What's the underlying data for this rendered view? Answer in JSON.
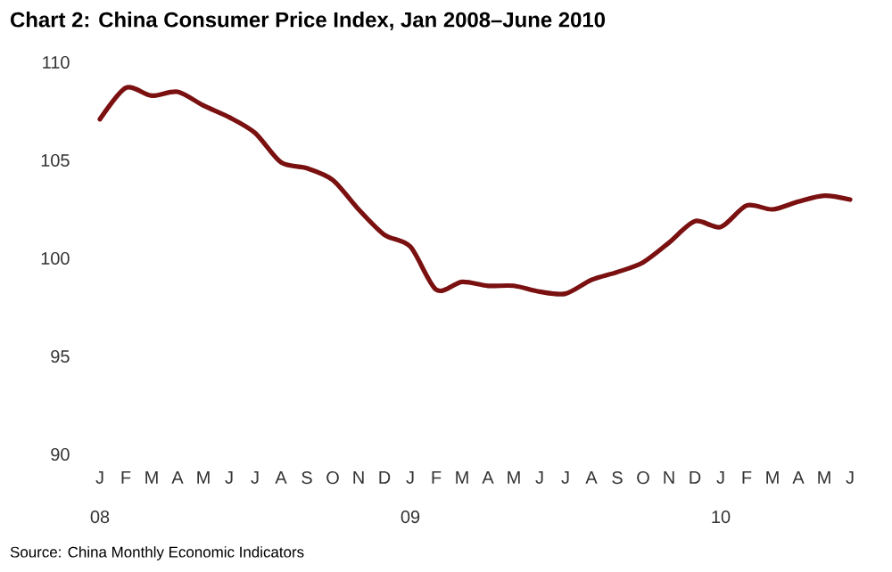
{
  "chart_data": {
    "type": "line",
    "title": "Chart 2: China Consumer Price Index, Jan 2008–June 2010",
    "categories": [
      "J",
      "F",
      "M",
      "A",
      "M",
      "J",
      "J",
      "A",
      "S",
      "O",
      "N",
      "D",
      "J",
      "F",
      "M",
      "A",
      "M",
      "J",
      "J",
      "A",
      "S",
      "O",
      "N",
      "D",
      "J",
      "F",
      "M",
      "A",
      "M",
      "J"
    ],
    "series": [
      {
        "color": "#7a1010",
        "values": [
          107.1,
          108.7,
          108.3,
          108.5,
          107.8,
          107.2,
          106.4,
          104.9,
          104.6,
          104.0,
          102.5,
          101.2,
          100.6,
          98.4,
          98.8,
          98.6,
          98.6,
          98.3,
          98.2,
          98.9,
          99.3,
          99.8,
          100.8,
          101.9,
          101.6,
          102.7,
          102.5,
          102.9,
          103.2,
          103.0
        ]
      }
    ],
    "ylim": [
      90,
      110
    ],
    "yticks": [
      90,
      95,
      100,
      105,
      110
    ],
    "annotations": [
      "08",
      "09",
      "10",
      "Source: China Monthly Economic Indicators"
    ]
  }
}
